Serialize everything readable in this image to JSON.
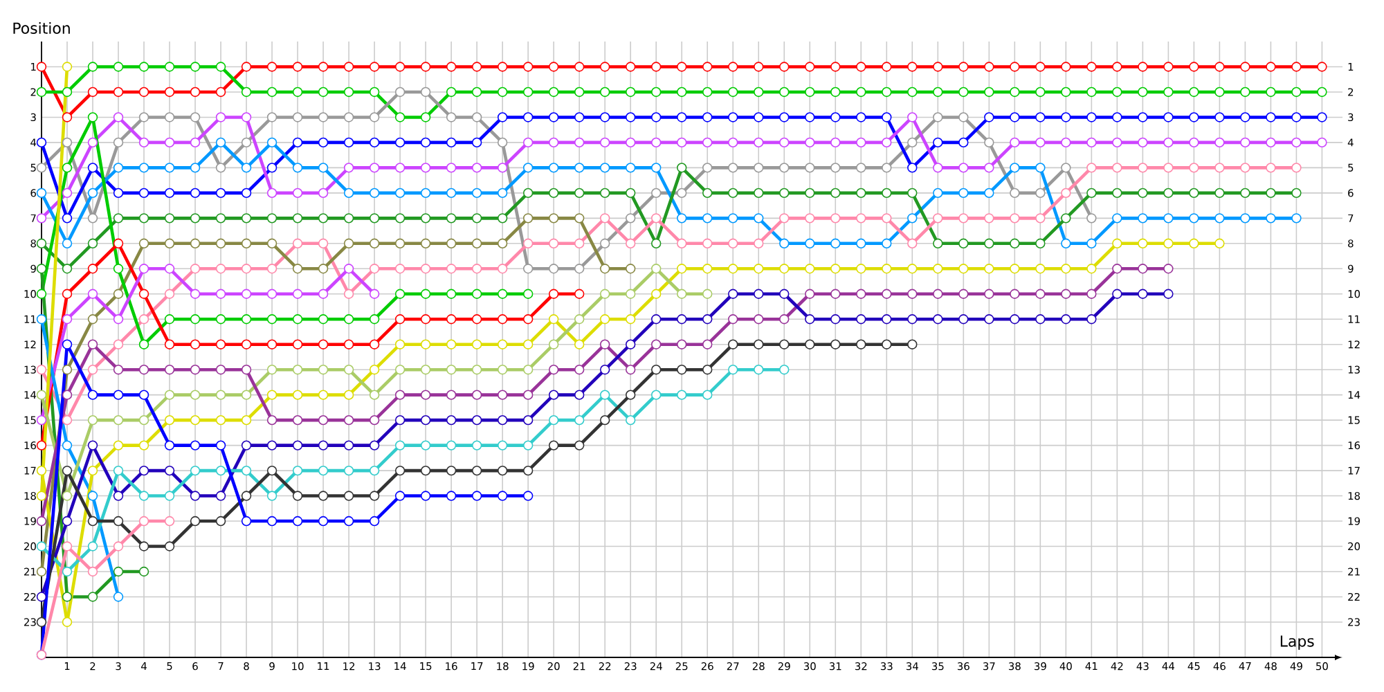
{
  "chart_data": {
    "type": "line",
    "xlabel": "Laps",
    "ylabel": "Position",
    "x": [
      0,
      1,
      2,
      3,
      4,
      5,
      6,
      7,
      8,
      9,
      10,
      11,
      12,
      13,
      14,
      15,
      16,
      17,
      18,
      19,
      20,
      21,
      22,
      23,
      24,
      25,
      26,
      27,
      28,
      29,
      30,
      31,
      32,
      33,
      34,
      35,
      36,
      37,
      38,
      39,
      40,
      41,
      42,
      43,
      44,
      45,
      46,
      47,
      48,
      49,
      50
    ],
    "xlim": [
      0,
      50.8
    ],
    "xticks": [
      1,
      2,
      3,
      4,
      5,
      6,
      7,
      8,
      9,
      10,
      11,
      12,
      13,
      14,
      15,
      16,
      17,
      18,
      19,
      20,
      21,
      22,
      23,
      24,
      25,
      26,
      27,
      28,
      29,
      30,
      31,
      32,
      33,
      34,
      35,
      36,
      37,
      38,
      39,
      40,
      41,
      42,
      43,
      44,
      45,
      46,
      47,
      48,
      49,
      50
    ],
    "ylim": [
      24.4,
      0
    ],
    "yticks": [
      1,
      2,
      3,
      4,
      5,
      6,
      7,
      8,
      9,
      10,
      11,
      12,
      13,
      14,
      15,
      16,
      17,
      18,
      19,
      20,
      21,
      22,
      23
    ],
    "y2lim": [
      24.4,
      0
    ],
    "y2ticks": [
      1,
      2,
      3,
      4,
      5,
      6,
      7,
      8,
      9,
      10,
      11,
      12,
      13,
      14,
      15,
      16,
      17,
      18,
      19,
      20,
      21,
      22,
      23
    ],
    "grid": true,
    "marker": "circle",
    "line_style": "solid",
    "series": [
      {
        "color": "#ff0000",
        "values": [
          1,
          3,
          2,
          2,
          2,
          2,
          2,
          2,
          1,
          1,
          1,
          1,
          1,
          1,
          1,
          1,
          1,
          1,
          1,
          1,
          1,
          1,
          1,
          1,
          1,
          1,
          1,
          1,
          1,
          1,
          1,
          1,
          1,
          1,
          1,
          1,
          1,
          1,
          1,
          1,
          1,
          1,
          1,
          1,
          1,
          1,
          1,
          1,
          1,
          1,
          1
        ]
      },
      {
        "color": "#00cc00",
        "values": [
          2,
          2,
          1,
          1,
          1,
          1,
          1,
          1,
          2,
          2,
          2,
          2,
          2,
          2,
          3,
          3,
          2,
          2,
          2,
          2,
          2,
          2,
          2,
          2,
          2,
          2,
          2,
          2,
          2,
          2,
          2,
          2,
          2,
          2,
          2,
          2,
          2,
          2,
          2,
          2,
          2,
          2,
          2,
          2,
          2,
          2,
          2,
          2,
          2,
          2,
          2
        ]
      },
      {
        "color": "#999999",
        "values": [
          5,
          4,
          7,
          4,
          3,
          3,
          3,
          5,
          4,
          3,
          3,
          3,
          3,
          3,
          2,
          2,
          3,
          3,
          4,
          9,
          9,
          9,
          8,
          7,
          6,
          6,
          5,
          5,
          5,
          5,
          5,
          5,
          5,
          5,
          4,
          3,
          3,
          4,
          6,
          6,
          5,
          7,
          null,
          null,
          null,
          null,
          null,
          null,
          null,
          null,
          null
        ]
      },
      {
        "color": "#0000ff",
        "values": [
          4,
          7,
          5,
          6,
          6,
          6,
          6,
          6,
          6,
          5,
          4,
          4,
          4,
          4,
          4,
          4,
          4,
          4,
          3,
          3,
          3,
          3,
          3,
          3,
          3,
          3,
          3,
          3,
          3,
          3,
          3,
          3,
          3,
          3,
          5,
          4,
          4,
          3,
          3,
          3,
          3,
          3,
          3,
          3,
          3,
          3,
          3,
          3,
          3,
          3,
          3
        ]
      },
      {
        "color": "#cc44ff",
        "values": [
          7,
          6,
          4,
          3,
          4,
          4,
          4,
          3,
          3,
          6,
          6,
          6,
          5,
          5,
          5,
          5,
          5,
          5,
          5,
          4,
          4,
          4,
          4,
          4,
          4,
          4,
          4,
          4,
          4,
          4,
          4,
          4,
          4,
          4,
          3,
          5,
          5,
          5,
          4,
          4,
          4,
          4,
          4,
          4,
          4,
          4,
          4,
          4,
          4,
          4,
          4
        ]
      },
      {
        "color": "#0099ff",
        "values": [
          6,
          8,
          6,
          5,
          5,
          5,
          5,
          4,
          5,
          4,
          5,
          5,
          6,
          6,
          6,
          6,
          6,
          6,
          6,
          5,
          5,
          5,
          5,
          5,
          5,
          7,
          7,
          7,
          7,
          8,
          8,
          8,
          8,
          8,
          7,
          6,
          6,
          6,
          5,
          5,
          8,
          8,
          7,
          7,
          7,
          7,
          7,
          7,
          7,
          7,
          null
        ]
      },
      {
        "color": "#229922",
        "values": [
          8,
          9,
          8,
          7,
          7,
          7,
          7,
          7,
          7,
          7,
          7,
          7,
          7,
          7,
          7,
          7,
          7,
          7,
          7,
          6,
          6,
          6,
          6,
          6,
          8,
          5,
          6,
          6,
          6,
          6,
          6,
          6,
          6,
          6,
          6,
          8,
          8,
          8,
          8,
          8,
          7,
          6,
          6,
          6,
          6,
          6,
          6,
          6,
          6,
          6,
          null
        ]
      },
      {
        "color": "#ff88aa",
        "values": [
          13,
          15,
          13,
          12,
          11,
          10,
          9,
          9,
          9,
          9,
          8,
          8,
          10,
          9,
          9,
          9,
          9,
          9,
          9,
          8,
          8,
          8,
          7,
          8,
          7,
          8,
          8,
          8,
          8,
          7,
          7,
          7,
          7,
          7,
          8,
          7,
          7,
          7,
          7,
          7,
          6,
          5,
          5,
          5,
          5,
          5,
          5,
          5,
          5,
          5,
          null
        ]
      },
      {
        "color": "#888844",
        "values": [
          21,
          13,
          11,
          10,
          8,
          8,
          8,
          8,
          8,
          8,
          9,
          9,
          8,
          8,
          8,
          8,
          8,
          8,
          8,
          7,
          7,
          7,
          9,
          9,
          null,
          null,
          null,
          null,
          null,
          null,
          null,
          null,
          null,
          null,
          null,
          null,
          null,
          null,
          null,
          null,
          null,
          null,
          null,
          null,
          null,
          null,
          null,
          null,
          null,
          null,
          null
        ]
      },
      {
        "color": "#00cc00",
        "values": [
          10,
          5,
          3,
          9,
          12,
          11,
          11,
          11,
          11,
          11,
          11,
          11,
          11,
          11,
          10,
          10,
          10,
          10,
          10,
          10,
          null,
          null,
          null,
          null,
          null,
          null,
          null,
          null,
          null,
          null,
          null,
          null,
          null,
          null,
          null,
          null,
          null,
          null,
          null,
          null,
          null,
          null,
          null,
          null,
          null,
          null,
          null,
          null,
          null,
          null,
          null
        ]
      },
      {
        "color": "#229922",
        "values": [
          9,
          22,
          22,
          21,
          21,
          null,
          null,
          null,
          null,
          null,
          null,
          null,
          null,
          null,
          null,
          null,
          null,
          null,
          null,
          null,
          null,
          null,
          null,
          null,
          null,
          null,
          null,
          null,
          null,
          null,
          null,
          null,
          null,
          null,
          null,
          null,
          null,
          null,
          null,
          null,
          null,
          null,
          null,
          null,
          null,
          null,
          null,
          null,
          null,
          null,
          null
        ]
      },
      {
        "color": "#ff0000",
        "values": [
          16,
          10,
          9,
          8,
          10,
          12,
          12,
          12,
          12,
          12,
          12,
          12,
          12,
          12,
          11,
          11,
          11,
          11,
          11,
          11,
          10,
          10,
          null,
          null,
          null,
          null,
          null,
          null,
          null,
          null,
          null,
          null,
          null,
          null,
          null,
          null,
          null,
          null,
          null,
          null,
          null,
          null,
          null,
          null,
          null,
          null,
          null,
          null,
          null,
          null,
          null
        ]
      },
      {
        "color": "#cc44ff",
        "values": [
          15,
          11,
          10,
          11,
          9,
          9,
          10,
          10,
          10,
          10,
          10,
          10,
          9,
          10,
          null,
          null,
          null,
          null,
          null,
          null,
          null,
          null,
          null,
          null,
          null,
          null,
          null,
          null,
          null,
          null,
          null,
          null,
          null,
          null,
          null,
          null,
          null,
          null,
          null,
          null,
          null,
          null,
          null,
          null,
          null,
          null,
          null,
          null,
          null,
          null,
          null
        ]
      },
      {
        "color": "#0099ff",
        "values": [
          11,
          16,
          18,
          22,
          null,
          null,
          null,
          null,
          null,
          null,
          null,
          null,
          null,
          null,
          null,
          null,
          null,
          null,
          null,
          null,
          null,
          null,
          null,
          null,
          null,
          null,
          null,
          null,
          null,
          null,
          null,
          null,
          null,
          null,
          null,
          null,
          null,
          null,
          null,
          null,
          null,
          null,
          null,
          null,
          null,
          null,
          null,
          null,
          null,
          null,
          null
        ]
      },
      {
        "color": "#dddd00",
        "values": [
          17,
          23,
          17,
          16,
          16,
          15,
          15,
          15,
          15,
          14,
          14,
          14,
          14,
          13,
          12,
          12,
          12,
          12,
          12,
          12,
          11,
          12,
          11,
          11,
          10,
          9,
          9,
          9,
          9,
          9,
          9,
          9,
          9,
          9,
          9,
          9,
          9,
          9,
          9,
          9,
          9,
          9,
          8,
          8,
          8,
          8,
          8,
          null,
          null,
          null,
          null
        ]
      },
      {
        "color": "#dddd00",
        "values": [
          18,
          1,
          null,
          null,
          null,
          null,
          null,
          null,
          null,
          null,
          null,
          null,
          null,
          null,
          null,
          null,
          null,
          null,
          null,
          null,
          null,
          null,
          null,
          null,
          null,
          null,
          null,
          null,
          null,
          null,
          null,
          null,
          null,
          null,
          null,
          null,
          null,
          null,
          null,
          null,
          null,
          null,
          null,
          null,
          null,
          null,
          null,
          null,
          null,
          null,
          null
        ]
      },
      {
        "color": "#aacc66",
        "values": [
          14,
          18,
          15,
          15,
          15,
          14,
          14,
          14,
          14,
          13,
          13,
          13,
          13,
          14,
          13,
          13,
          13,
          13,
          13,
          13,
          12,
          11,
          10,
          10,
          9,
          10,
          10,
          null,
          null,
          null,
          null,
          null,
          null,
          null,
          null,
          null,
          null,
          null,
          null,
          null,
          null,
          null,
          null,
          null,
          null,
          null,
          null,
          null,
          null,
          null,
          null
        ]
      },
      {
        "color": "#993399",
        "values": [
          19,
          14,
          12,
          13,
          13,
          13,
          13,
          13,
          13,
          15,
          15,
          15,
          15,
          15,
          14,
          14,
          14,
          14,
          14,
          14,
          13,
          13,
          12,
          13,
          12,
          12,
          12,
          11,
          11,
          11,
          10,
          10,
          10,
          10,
          10,
          10,
          10,
          10,
          10,
          10,
          10,
          10,
          9,
          9,
          9,
          null,
          null,
          null,
          null,
          null,
          null
        ]
      },
      {
        "color": "#2200bb",
        "values": [
          22,
          19,
          16,
          18,
          17,
          17,
          18,
          18,
          16,
          16,
          16,
          16,
          16,
          16,
          15,
          15,
          15,
          15,
          15,
          15,
          14,
          14,
          13,
          12,
          11,
          11,
          11,
          10,
          10,
          10,
          11,
          11,
          11,
          11,
          11,
          11,
          11,
          11,
          11,
          11,
          11,
          11,
          10,
          10,
          10,
          null,
          null,
          null,
          null,
          null,
          null
        ]
      },
      {
        "color": "#33cccc",
        "values": [
          20,
          21,
          20,
          17,
          18,
          18,
          17,
          17,
          17,
          18,
          17,
          17,
          17,
          17,
          16,
          16,
          16,
          16,
          16,
          16,
          15,
          15,
          14,
          15,
          14,
          14,
          14,
          13,
          13,
          13,
          null,
          null,
          null,
          null,
          null,
          null,
          null,
          null,
          null,
          null,
          null,
          null,
          null,
          null,
          null,
          null,
          null,
          null,
          null,
          null,
          null
        ]
      },
      {
        "color": "#333333",
        "values": [
          23,
          17,
          19,
          19,
          20,
          20,
          19,
          19,
          18,
          17,
          18,
          18,
          18,
          18,
          17,
          17,
          17,
          17,
          17,
          17,
          16,
          16,
          15,
          14,
          13,
          13,
          13,
          12,
          12,
          12,
          12,
          12,
          12,
          12,
          12,
          null,
          null,
          null,
          null,
          null,
          null,
          null,
          null,
          null,
          null,
          null,
          null,
          null,
          null,
          null,
          null
        ]
      },
      {
        "color": "#0000ff",
        "values": [
          24.3,
          12,
          14,
          14,
          14,
          16,
          16,
          16,
          19,
          19,
          19,
          19,
          19,
          19,
          18,
          18,
          18,
          18,
          18,
          18,
          null,
          null,
          null,
          null,
          null,
          null,
          null,
          null,
          null,
          null,
          null,
          null,
          null,
          null,
          null,
          null,
          null,
          null,
          null,
          null,
          null,
          null,
          null,
          null,
          null,
          null,
          null,
          null,
          null,
          null,
          null
        ]
      },
      {
        "color": "#ff88aa",
        "values": [
          24.3,
          20,
          21,
          20,
          19,
          19,
          null,
          null,
          null,
          null,
          null,
          null,
          null,
          null,
          null,
          null,
          null,
          null,
          null,
          null,
          null,
          null,
          null,
          null,
          null,
          null,
          null,
          null,
          null,
          null,
          null,
          null,
          null,
          null,
          null,
          null,
          null,
          null,
          null,
          null,
          null,
          null,
          null,
          null,
          null,
          null,
          null,
          null,
          null,
          null,
          null
        ]
      }
    ]
  }
}
